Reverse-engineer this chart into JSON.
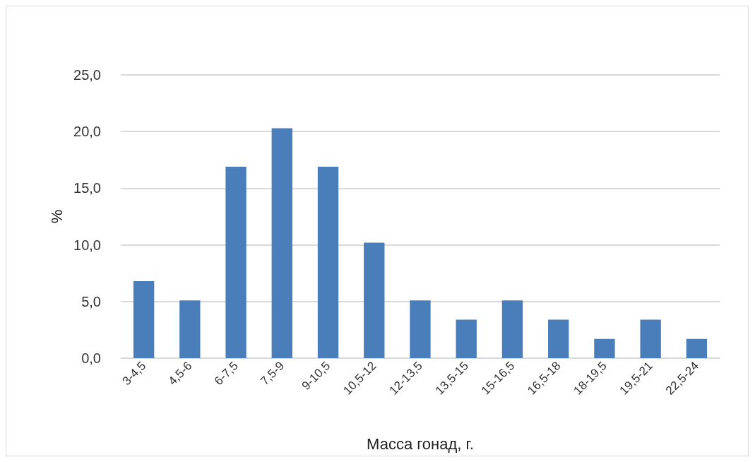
{
  "chart_data": {
    "type": "bar",
    "xlabel": "Масса гонад, г.",
    "ylabel": "%",
    "categories": [
      "3-4,5",
      "4,5-6",
      "6-7,5",
      "7,5-9",
      "9-10,5",
      "10,5-12",
      "12-13,5",
      "13,5-15",
      "15-16,5",
      "16,5-18",
      "18-19,5",
      "19,5-21",
      "22,5-24"
    ],
    "values": [
      6.8,
      5.1,
      16.9,
      20.3,
      16.9,
      10.2,
      5.1,
      3.4,
      5.1,
      3.4,
      1.7,
      3.4,
      1.7
    ],
    "color": "#4a7ebb",
    "ylim": [
      0,
      25
    ],
    "yticks": [
      {
        "value": 0,
        "label": "0,0"
      },
      {
        "value": 5,
        "label": "5,0"
      },
      {
        "value": 10,
        "label": "10,0"
      },
      {
        "value": 15,
        "label": "15,0"
      },
      {
        "value": 20,
        "label": "20,0"
      },
      {
        "value": 25,
        "label": "25,0"
      }
    ],
    "grid": "y"
  }
}
